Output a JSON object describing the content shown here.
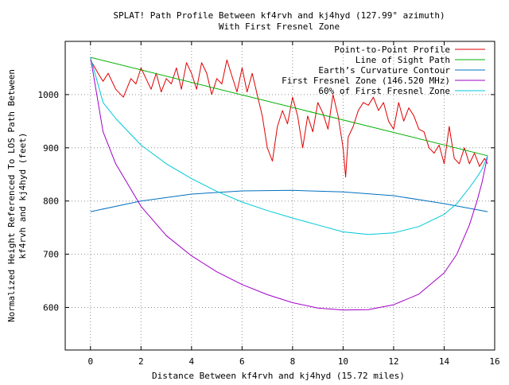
{
  "chart_data": {
    "type": "line",
    "title": "SPLAT! Path Profile Between kf4rvh and kj4hyd (127.99° azimuth)",
    "subtitle": "With First Fresnel Zone",
    "xlabel": "Distance Between kf4rvh and kj4hyd (15.72 miles)",
    "ylabel_line1": "Normalized Height Referenced To LOS Path Between",
    "ylabel_line2": "kf4rvh and kj4hyd (feet)",
    "xlim": [
      -1,
      16
    ],
    "ylim": [
      520,
      1100
    ],
    "x_ticks": [
      0,
      2,
      4,
      6,
      8,
      10,
      12,
      14,
      16
    ],
    "y_ticks": [
      600,
      700,
      800,
      900,
      1000
    ],
    "grid": true,
    "legend_position": "top-right",
    "colors": {
      "profile": "#e00000",
      "los": "#00b000",
      "curvature": "#0070c0",
      "fresnel": "#a000c8",
      "fresnel60": "#00c8d8",
      "grid": "#909090"
    },
    "series": [
      {
        "name": "Point-to-Point Profile",
        "color": "#e00000",
        "x": [
          0,
          0.3,
          0.5,
          0.7,
          1.0,
          1.3,
          1.6,
          1.8,
          2.0,
          2.2,
          2.4,
          2.6,
          2.8,
          3.0,
          3.2,
          3.4,
          3.6,
          3.8,
          4.0,
          4.2,
          4.4,
          4.6,
          4.8,
          5.0,
          5.2,
          5.4,
          5.6,
          5.8,
          6.0,
          6.2,
          6.4,
          6.6,
          6.8,
          7.0,
          7.2,
          7.4,
          7.6,
          7.8,
          8.0,
          8.2,
          8.4,
          8.6,
          8.8,
          9.0,
          9.2,
          9.4,
          9.6,
          9.8,
          10.0,
          10.1,
          10.2,
          10.4,
          10.6,
          10.8,
          11.0,
          11.2,
          11.4,
          11.6,
          11.8,
          12.0,
          12.2,
          12.4,
          12.6,
          12.8,
          13.0,
          13.2,
          13.4,
          13.6,
          13.8,
          14.0,
          14.2,
          14.4,
          14.6,
          14.8,
          15.0,
          15.2,
          15.4,
          15.6,
          15.72
        ],
        "values": [
          1065,
          1040,
          1025,
          1040,
          1010,
          995,
          1030,
          1020,
          1050,
          1030,
          1010,
          1040,
          1005,
          1030,
          1020,
          1050,
          1010,
          1060,
          1040,
          1010,
          1060,
          1040,
          1000,
          1030,
          1020,
          1065,
          1035,
          1005,
          1050,
          1005,
          1040,
          1000,
          960,
          900,
          875,
          940,
          970,
          945,
          995,
          960,
          900,
          960,
          930,
          985,
          965,
          935,
          1000,
          960,
          900,
          845,
          920,
          940,
          970,
          985,
          980,
          995,
          970,
          985,
          950,
          935,
          985,
          950,
          975,
          960,
          935,
          930,
          900,
          890,
          905,
          870,
          940,
          880,
          870,
          900,
          870,
          890,
          865,
          880,
          870
        ]
      },
      {
        "name": "Line of Sight Path",
        "color": "#00b000",
        "x": [
          0,
          15.72
        ],
        "values": [
          1070,
          885
        ]
      },
      {
        "name": "Earth’s Curvature Contour",
        "color": "#0070c0",
        "x": [
          0,
          2,
          4,
          6,
          8,
          10,
          12,
          14,
          15.72
        ],
        "values": [
          780,
          800,
          813,
          819,
          820,
          817,
          810,
          795,
          780
        ]
      },
      {
        "name": "First Fresnel Zone (146.520 MHz)",
        "color": "#a000c8",
        "x": [
          0,
          0.5,
          1,
          2,
          3,
          4,
          5,
          6,
          7,
          8,
          9,
          10,
          11,
          12,
          13,
          14,
          14.5,
          15,
          15.3,
          15.5,
          15.72
        ],
        "values": [
          1070,
          930,
          870,
          790,
          735,
          697,
          667,
          643,
          624,
          609,
          599,
          595,
          596,
          605,
          625,
          665,
          700,
          755,
          800,
          835,
          885
        ]
      },
      {
        "name": "60% of First Fresnel Zone",
        "color": "#00c8d8",
        "x": [
          0,
          0.5,
          1,
          2,
          3,
          4,
          5,
          6,
          7,
          8,
          9,
          10,
          11,
          12,
          13,
          14,
          14.5,
          15,
          15.3,
          15.5,
          15.72
        ],
        "values": [
          1070,
          985,
          955,
          905,
          870,
          842,
          818,
          798,
          782,
          768,
          755,
          742,
          737,
          740,
          752,
          775,
          795,
          825,
          845,
          860,
          885
        ]
      }
    ]
  }
}
